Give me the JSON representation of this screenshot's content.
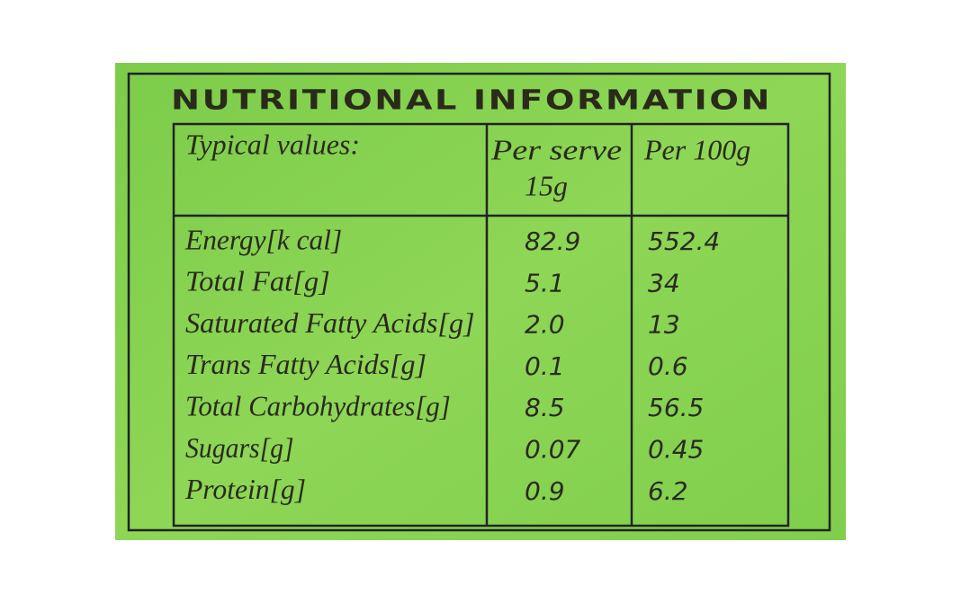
{
  "header": {
    "title": "NUTRITIONAL INFORMATION"
  },
  "table": {
    "columns": [
      "Typical values:",
      [
        "Per serve",
        "15g"
      ],
      "Per 100g"
    ],
    "rows": [
      [
        "Energy[k cal]",
        "82.9",
        "552.4"
      ],
      [
        "Total Fat[g]",
        "5.1",
        "34"
      ],
      [
        "Saturated Fatty Acids[g]",
        "2.0",
        "13"
      ],
      [
        "Trans Fatty Acids[g]",
        "0.1",
        "0.6"
      ],
      [
        "Total Carbohydrates[g]",
        "8.5",
        "56.5"
      ],
      [
        "Sugars[g]",
        "0.07",
        "0.45"
      ],
      [
        "Protein[g]",
        "0.9",
        "6.2"
      ]
    ]
  }
}
